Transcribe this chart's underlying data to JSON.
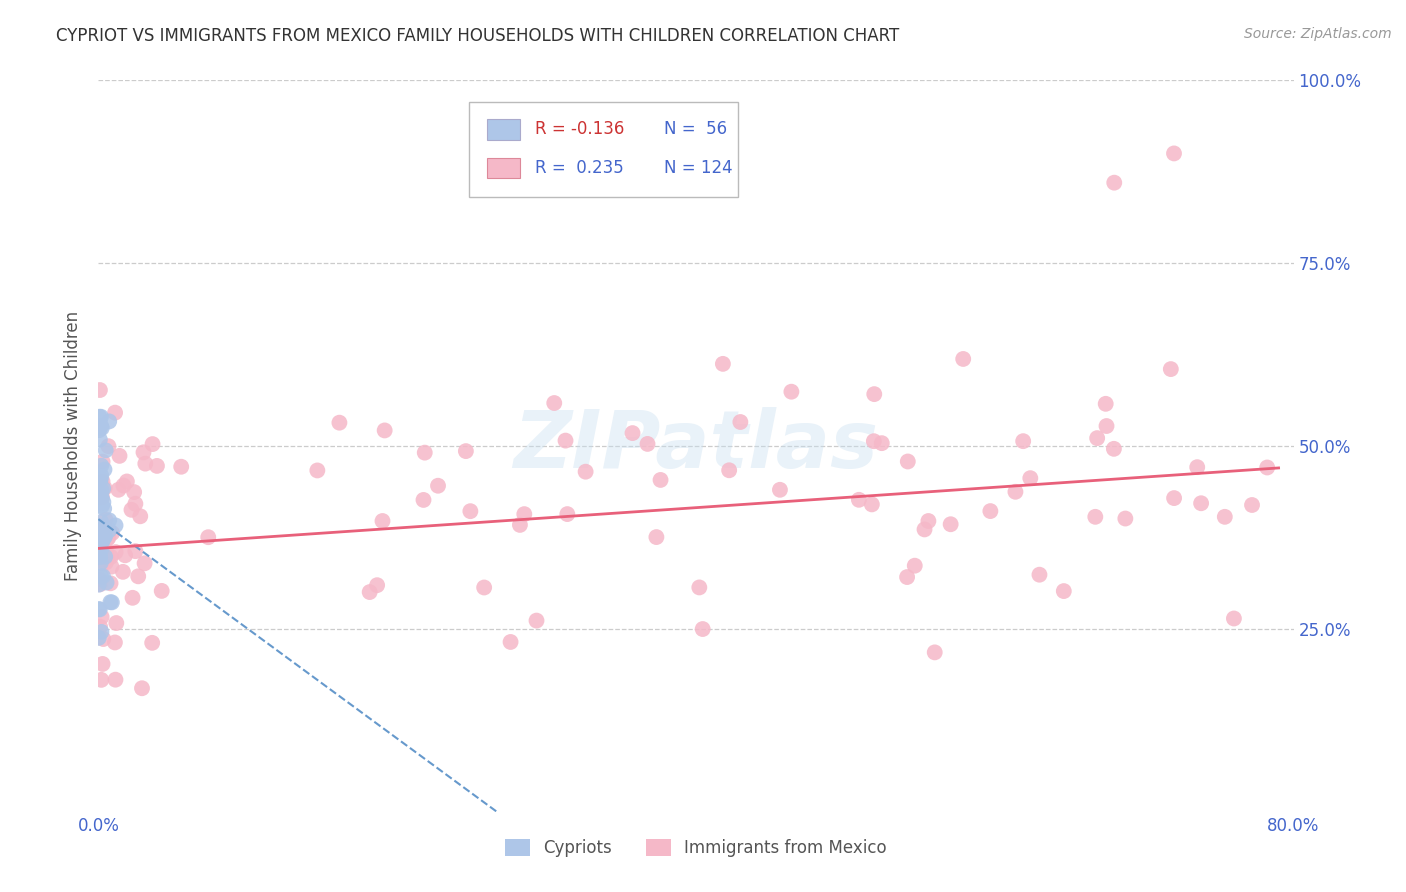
{
  "title": "CYPRIOT VS IMMIGRANTS FROM MEXICO FAMILY HOUSEHOLDS WITH CHILDREN CORRELATION CHART",
  "source": "Source: ZipAtlas.com",
  "ylabel": "Family Households with Children",
  "xlim": [
    0.0,
    0.8
  ],
  "ylim": [
    0.0,
    1.0
  ],
  "legend": {
    "cypriot_label": "Cypriots",
    "mexico_label": "Immigrants from Mexico",
    "cypriot_R": -0.136,
    "cypriot_N": 56,
    "mexico_R": 0.235,
    "mexico_N": 124
  },
  "cypriot_color": "#aec6e8",
  "mexico_color": "#f5b8c8",
  "cypriot_line_color": "#6699cc",
  "mexico_line_color": "#e8607a",
  "watermark": "ZIPatlas",
  "background_color": "#ffffff",
  "grid_color": "#cccccc",
  "axis_color": "#4466cc"
}
